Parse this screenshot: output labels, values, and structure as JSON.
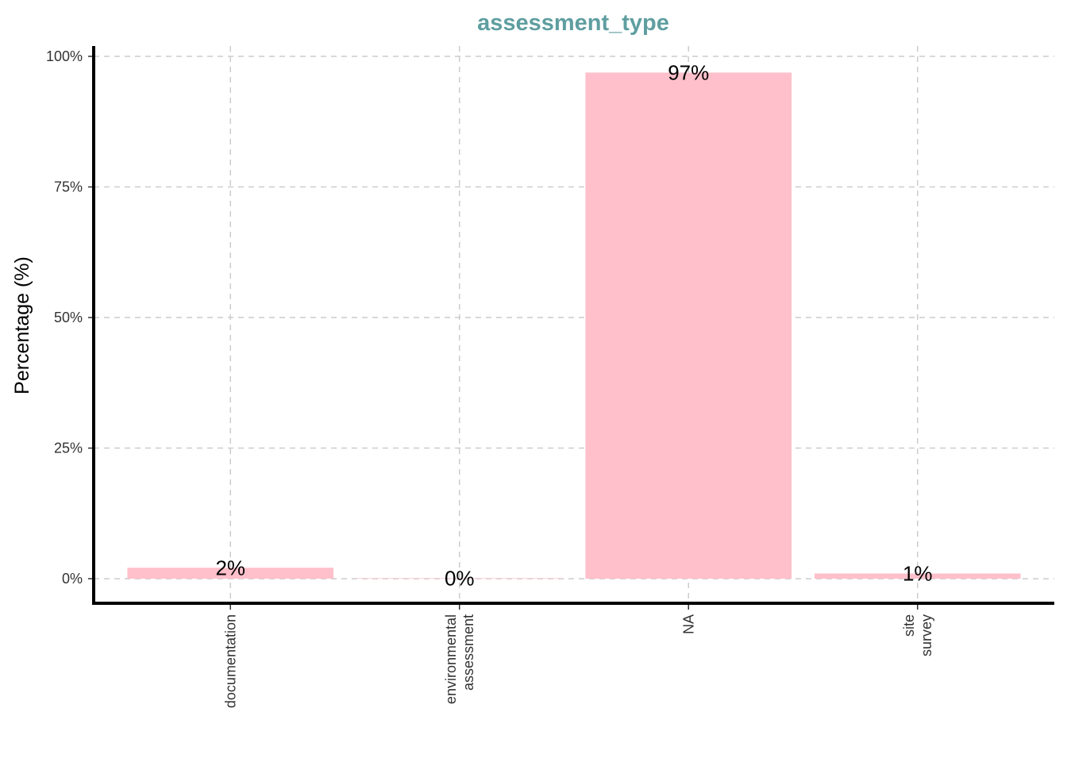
{
  "chart_data": {
    "type": "bar",
    "title": "assessment_type",
    "xlabel": "",
    "ylabel": "Percentage (%)",
    "categories": [
      [
        "documentation"
      ],
      [
        "environmental",
        "assessment"
      ],
      [
        "NA"
      ],
      [
        "site",
        "survey"
      ]
    ],
    "values": [
      2.1,
      0.1,
      96.9,
      1.0
    ],
    "data_labels": [
      "2%",
      "0%",
      "97%",
      "1%"
    ],
    "ylim": [
      -4.7,
      100
    ],
    "yticks": [
      0,
      25,
      50,
      75,
      100
    ],
    "ytick_labels": [
      "0%",
      "25%",
      "50%",
      "75%",
      "100%"
    ],
    "grid": true,
    "colors": {
      "bar": "#ffc0cb",
      "title": "#5f9ea0",
      "grid": "#cccccc"
    }
  }
}
